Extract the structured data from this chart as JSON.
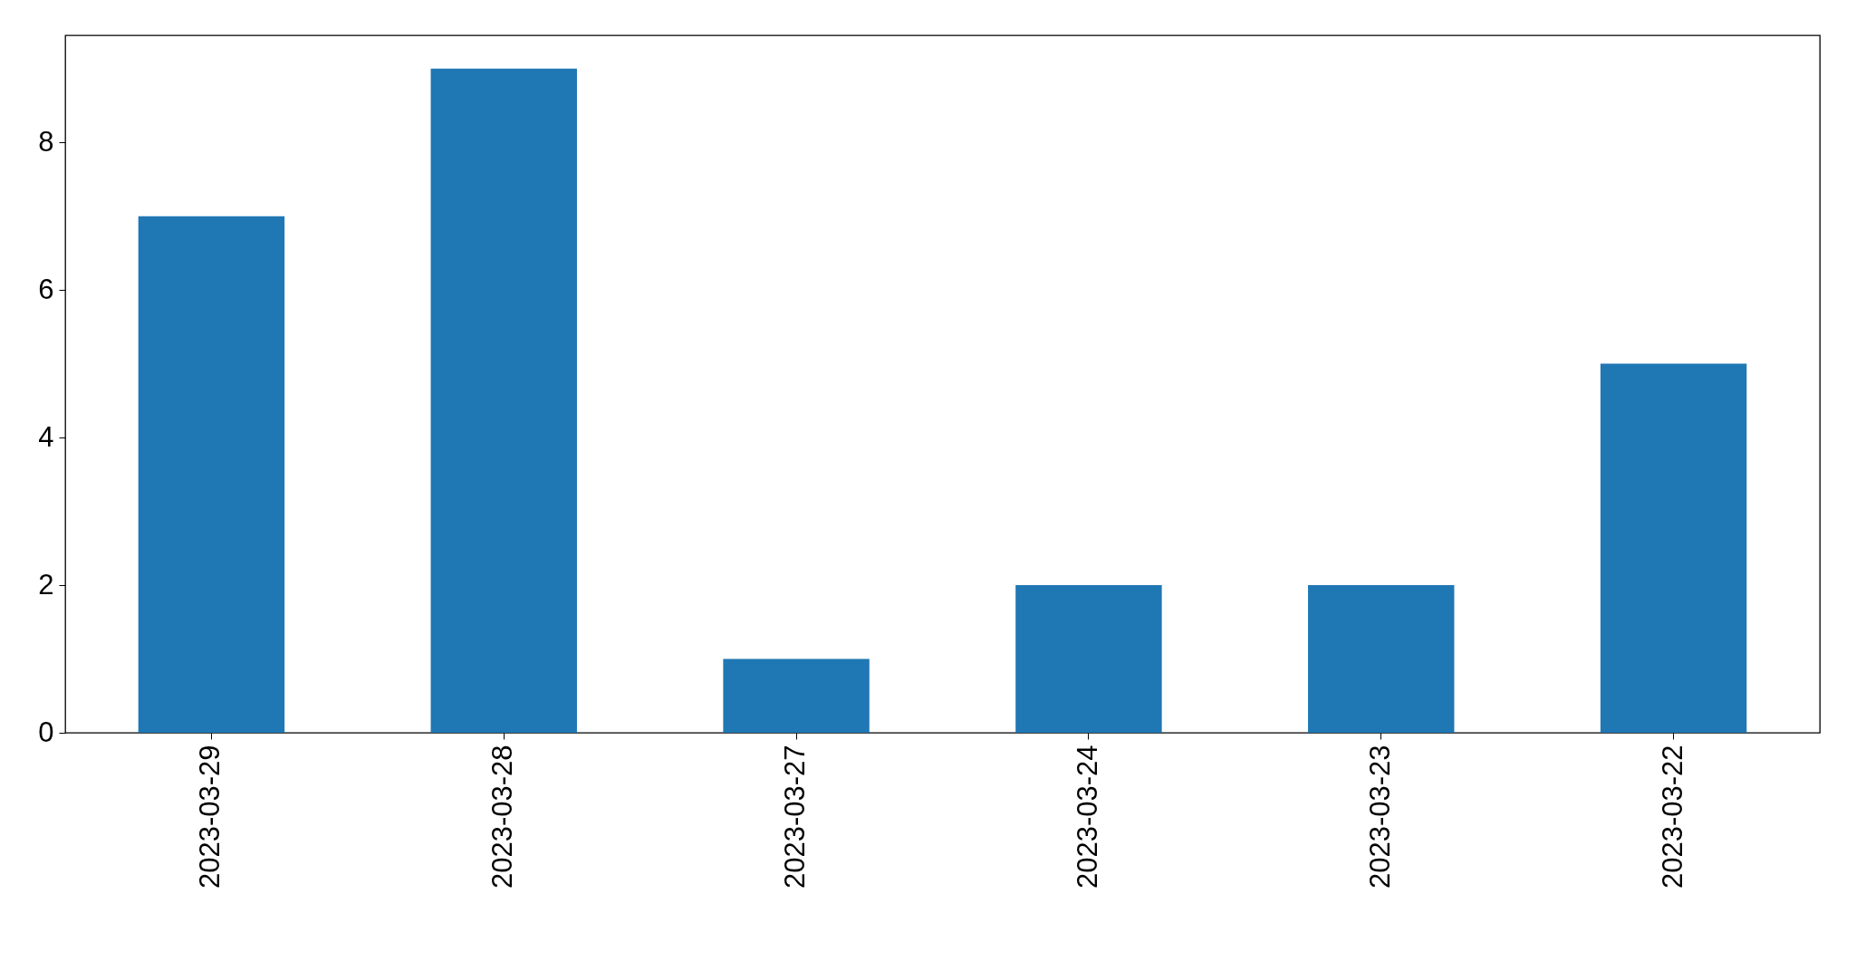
{
  "chart_data": {
    "type": "bar",
    "categories": [
      "2023-03-29",
      "2023-03-28",
      "2023-03-27",
      "2023-03-24",
      "2023-03-23",
      "2023-03-22"
    ],
    "values": [
      7,
      9,
      1,
      2,
      2,
      5
    ],
    "color": "#1f77b4",
    "ylim": [
      0,
      9.45
    ],
    "yticks": [
      0,
      2,
      4,
      6,
      8
    ],
    "grid": false
  }
}
